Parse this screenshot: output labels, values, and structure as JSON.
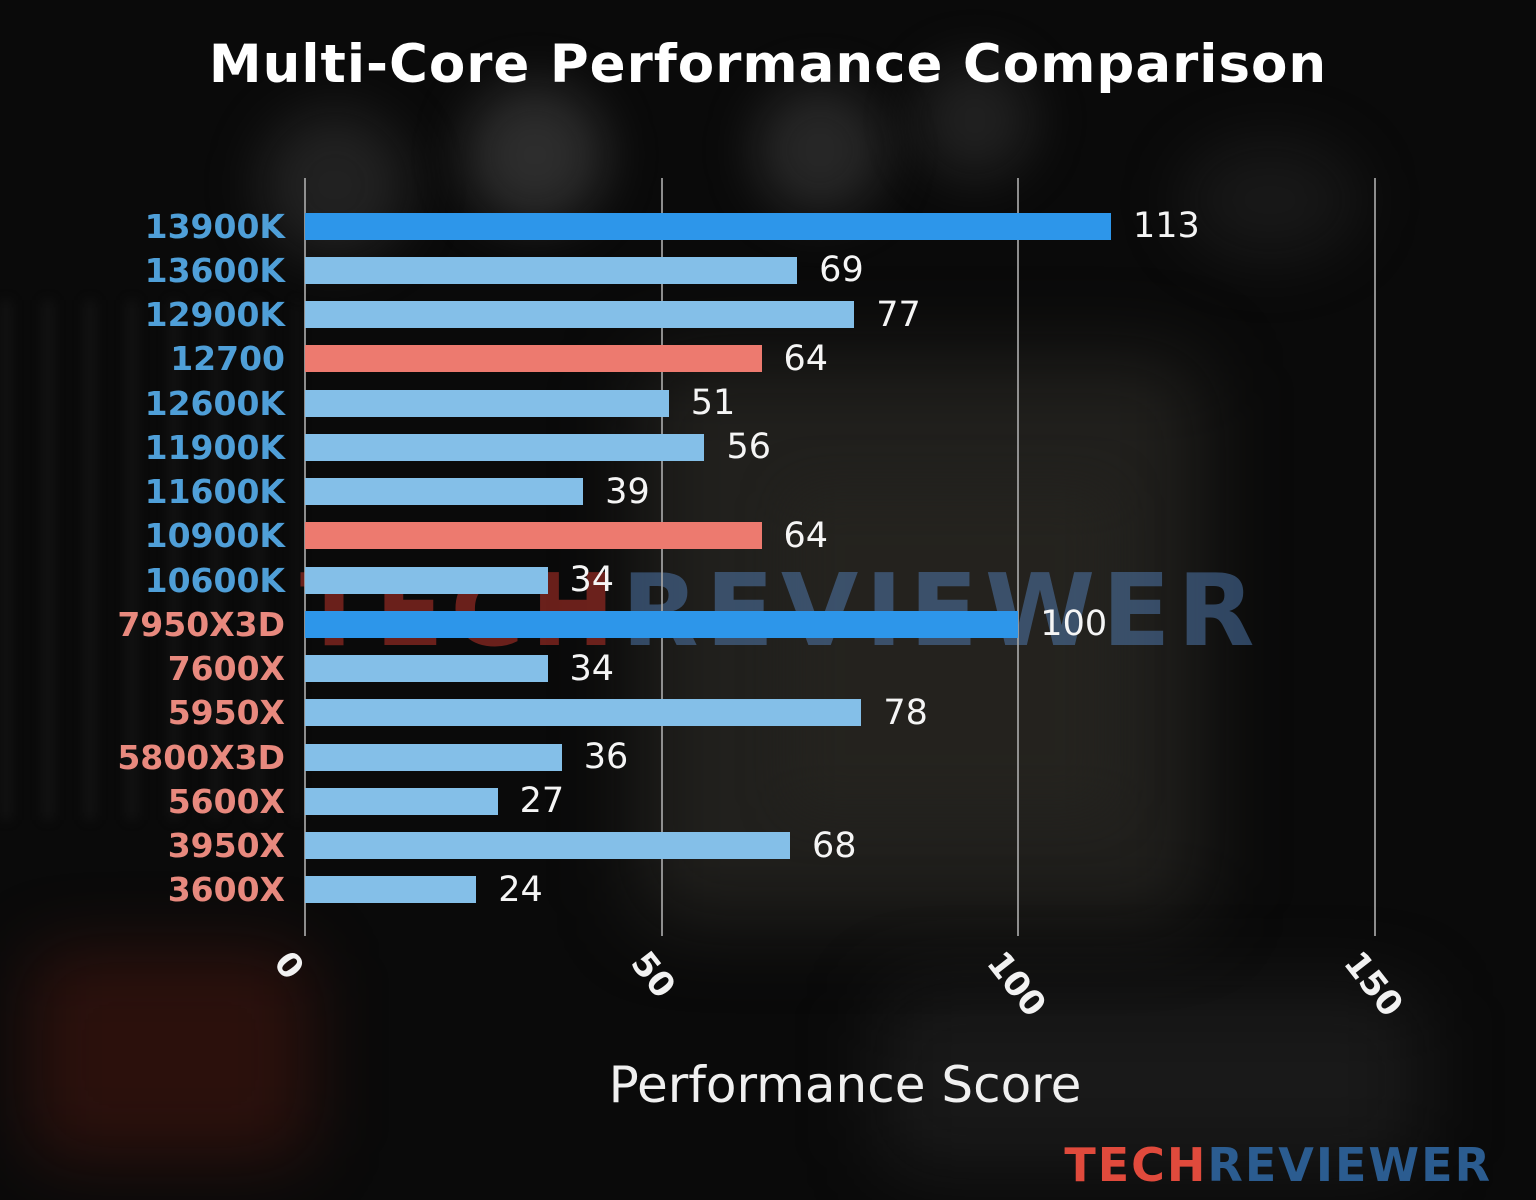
{
  "title": "Multi-Core Performance Comparison",
  "xlabel": "Performance Score",
  "watermark": {
    "part1": "TECH",
    "part2": "REVIEWER"
  },
  "logo": {
    "part1": "TECH",
    "part2": "REVIEWER"
  },
  "colors": {
    "intel_label": "#4f9fd8",
    "amd_label": "#e8897e",
    "bar_highlight_blue": "#2d96ea",
    "bar_light_blue": "#84bfe8",
    "bar_salmon": "#ed7a6f",
    "gridline": "#a5a5a5",
    "value_text": "#f5f5f5"
  },
  "chart_data": {
    "type": "bar",
    "orientation": "horizontal",
    "title": "Multi-Core Performance Comparison",
    "xlabel": "Performance Score",
    "xlim": [
      0,
      150
    ],
    "xticks": [
      0,
      50,
      100,
      150
    ],
    "grid": true,
    "categories": [
      "13900K",
      "13600K",
      "12900K",
      "12700",
      "12600K",
      "11900K",
      "11600K",
      "10900K",
      "10600K",
      "7950X3D",
      "7600X",
      "5950X",
      "5800X3D",
      "5600X",
      "3950X",
      "3600X"
    ],
    "values": [
      113,
      69,
      77,
      64,
      51,
      56,
      39,
      64,
      34,
      100,
      34,
      78,
      36,
      27,
      68,
      24
    ],
    "bar_colors": [
      "#2d96ea",
      "#84bfe8",
      "#84bfe8",
      "#ed7a6f",
      "#84bfe8",
      "#84bfe8",
      "#84bfe8",
      "#ed7a6f",
      "#84bfe8",
      "#2d96ea",
      "#84bfe8",
      "#84bfe8",
      "#84bfe8",
      "#84bfe8",
      "#84bfe8",
      "#84bfe8"
    ],
    "label_colors": [
      "#4f9fd8",
      "#4f9fd8",
      "#4f9fd8",
      "#4f9fd8",
      "#4f9fd8",
      "#4f9fd8",
      "#4f9fd8",
      "#4f9fd8",
      "#4f9fd8",
      "#e8897e",
      "#e8897e",
      "#e8897e",
      "#e8897e",
      "#e8897e",
      "#e8897e",
      "#e8897e"
    ]
  }
}
